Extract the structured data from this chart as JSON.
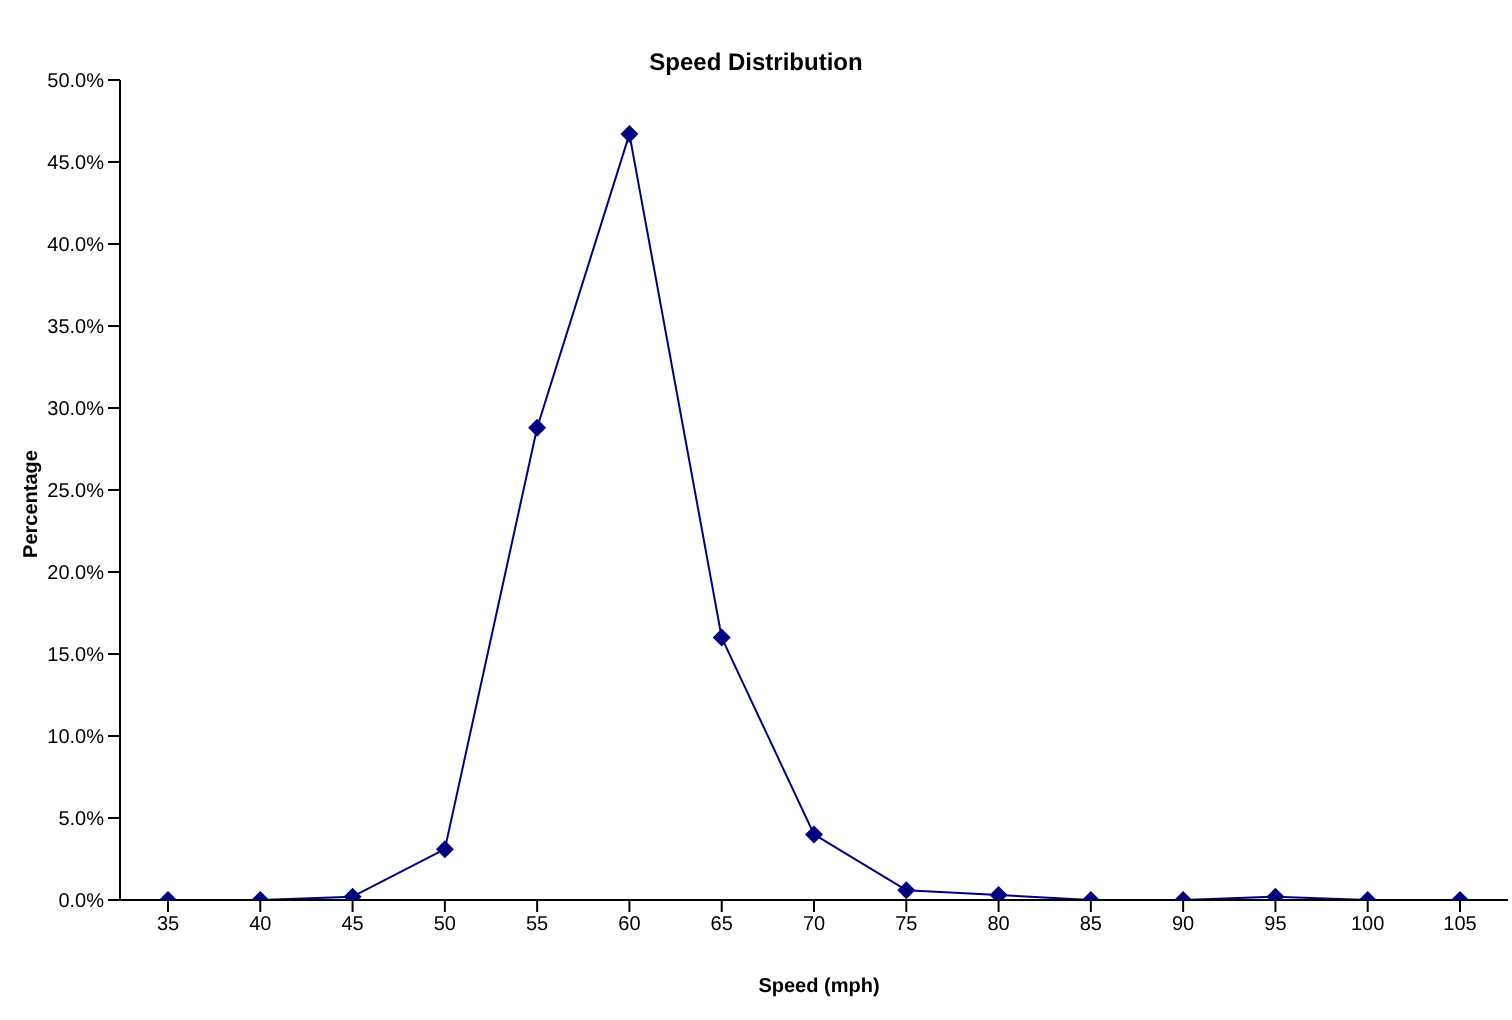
{
  "chart_data": {
    "type": "line",
    "title": "Speed Distribution",
    "xlabel": "Speed (mph)",
    "ylabel": "Percentage",
    "categories": [
      "35",
      "40",
      "45",
      "50",
      "55",
      "60",
      "65",
      "70",
      "75",
      "80",
      "85",
      "90",
      "95",
      "100",
      "105"
    ],
    "series": [
      {
        "color": "#000080",
        "values": [
          0,
          0,
          0.2,
          3.1,
          28.8,
          46.7,
          16.0,
          4.0,
          0.6,
          0.3,
          0,
          0,
          0.2,
          0,
          0
        ]
      }
    ],
    "ylim": [
      0,
      50
    ],
    "yticks": [
      {
        "value": 0,
        "label": "0.0%"
      },
      {
        "value": 5,
        "label": "5.0%"
      },
      {
        "value": 10,
        "label": "10.0%"
      },
      {
        "value": 15,
        "label": "15.0%"
      },
      {
        "value": 20,
        "label": "20.0%"
      },
      {
        "value": 25,
        "label": "25.0%"
      },
      {
        "value": 30,
        "label": "30.0%"
      },
      {
        "value": 35,
        "label": "35.0%"
      },
      {
        "value": 40,
        "label": "40.0%"
      },
      {
        "value": 45,
        "label": "45.0%"
      },
      {
        "value": 50,
        "label": "50.0%"
      }
    ],
    "marker": "diamond",
    "line_style": "solid",
    "grid": false,
    "legend": false
  }
}
